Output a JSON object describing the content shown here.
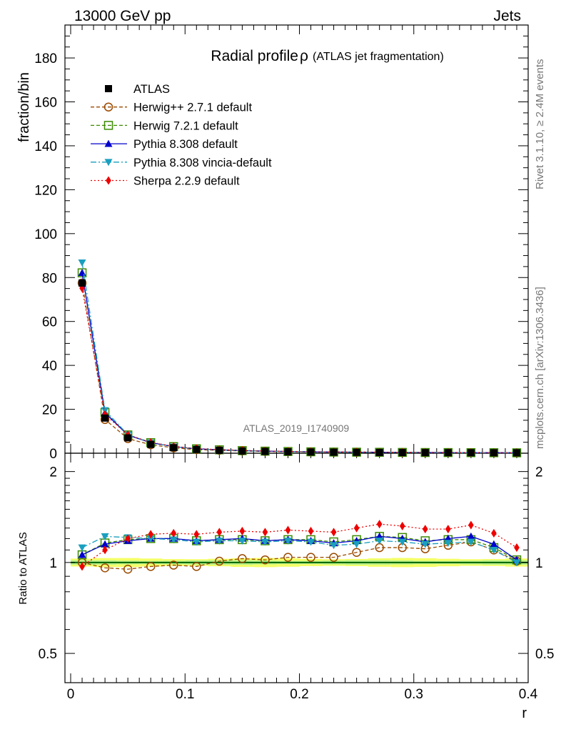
{
  "header": {
    "left": "13000 GeV pp",
    "right": "Jets"
  },
  "side_labels": {
    "rivet": "Rivet 3.1.10, ≥ 2.4M events",
    "mcplots": "mcplots.cern.ch [arXiv:1306.3436]"
  },
  "chart_data": {
    "type": "line",
    "title": "Radial profile",
    "title_symbol": "ρ",
    "title_sub": "(ATLAS jet fragmentation)",
    "analysis_label": "ATLAS_2019_I1740909",
    "xlabel": "r",
    "ylabel_main": "fraction/bin",
    "ylabel_ratio": "Ratio to ATLAS",
    "xlim": [
      -0.005,
      0.4
    ],
    "ylim_main": [
      0,
      195
    ],
    "ylim_ratio": [
      0.4,
      2.3
    ],
    "x_ticks": [
      "0",
      "0.1",
      "0.2",
      "0.3",
      "0.4"
    ],
    "y_ticks_main": [
      "0",
      "20",
      "40",
      "60",
      "80",
      "100",
      "120",
      "140",
      "160",
      "180"
    ],
    "y_ticks_ratio": [
      "0.5",
      "1",
      "2"
    ],
    "legend_position": "top-left",
    "x": [
      0.01,
      0.03,
      0.05,
      0.07,
      0.09,
      0.11,
      0.13,
      0.15,
      0.17,
      0.19,
      0.21,
      0.23,
      0.25,
      0.27,
      0.29,
      0.31,
      0.33,
      0.35,
      0.37,
      0.39
    ],
    "data": {
      "name": "ATLAS",
      "values": [
        77.5,
        16.0,
        7.0,
        4.0,
        2.5,
        1.7,
        1.3,
        1.0,
        0.8,
        0.65,
        0.55,
        0.45,
        0.4,
        0.35,
        0.3,
        0.27,
        0.25,
        0.22,
        0.2,
        0.18
      ]
    },
    "series": [
      {
        "name": "Herwig++ 2.7.1 default",
        "color": "#9a4a00",
        "marker": "circle-open",
        "dash": "5,3",
        "ratio": [
          1.0,
          0.96,
          0.95,
          0.97,
          0.98,
          0.97,
          1.01,
          1.03,
          1.02,
          1.04,
          1.04,
          1.04,
          1.08,
          1.12,
          1.12,
          1.11,
          1.14,
          1.17,
          1.1,
          1.01
        ]
      },
      {
        "name": "Herwig 7.2.1 default",
        "color": "#3b8a00",
        "marker": "square-open",
        "dash": "5,3",
        "ratio": [
          1.06,
          1.16,
          1.19,
          1.2,
          1.2,
          1.18,
          1.19,
          1.19,
          1.18,
          1.19,
          1.19,
          1.17,
          1.19,
          1.22,
          1.21,
          1.18,
          1.19,
          1.19,
          1.12,
          1.02
        ]
      },
      {
        "name": "Pythia 8.308 default",
        "color": "#0000cc",
        "marker": "triangle-up",
        "dash": "",
        "ratio": [
          1.06,
          1.15,
          1.18,
          1.2,
          1.2,
          1.18,
          1.19,
          1.2,
          1.18,
          1.19,
          1.18,
          1.16,
          1.18,
          1.22,
          1.2,
          1.17,
          1.2,
          1.22,
          1.15,
          1.02
        ]
      },
      {
        "name": "Pythia 8.308 vincia-default",
        "color": "#1a9fbf",
        "marker": "triangle-down",
        "dash": "8,3,2,3",
        "ratio": [
          1.12,
          1.22,
          1.21,
          1.2,
          1.19,
          1.17,
          1.18,
          1.18,
          1.17,
          1.18,
          1.17,
          1.14,
          1.15,
          1.18,
          1.17,
          1.15,
          1.16,
          1.17,
          1.1,
          1.0
        ]
      },
      {
        "name": "Sherpa 2.2.9 default",
        "color": "#ee0000",
        "marker": "diamond",
        "dash": "2,3",
        "ratio": [
          0.97,
          1.1,
          1.2,
          1.24,
          1.25,
          1.24,
          1.26,
          1.27,
          1.26,
          1.28,
          1.27,
          1.26,
          1.3,
          1.34,
          1.32,
          1.29,
          1.29,
          1.33,
          1.25,
          1.12
        ]
      }
    ],
    "band_colors": {
      "outer": "#f5ff66",
      "inner": "#b8f08a"
    },
    "ratio_line_color": "#006600"
  }
}
